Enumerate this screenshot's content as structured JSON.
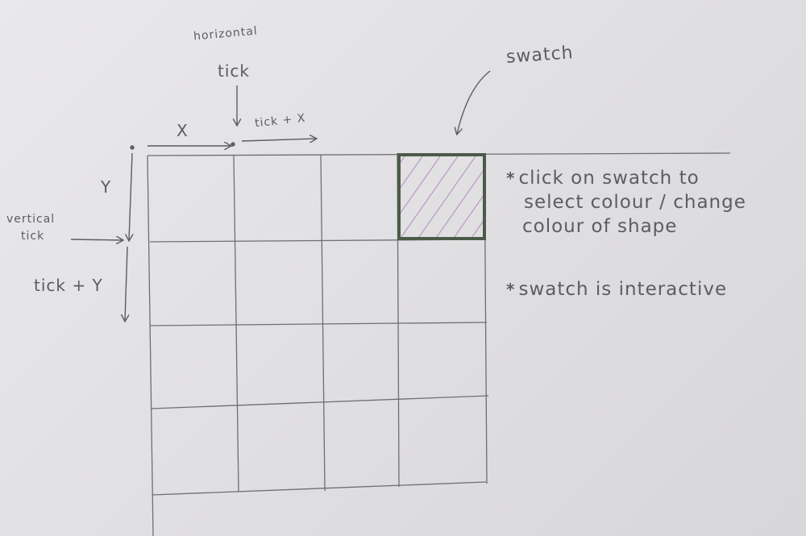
{
  "labels": {
    "horizontal_tick_line1": "horizontal",
    "horizontal_tick_line2": "tick",
    "x": "X",
    "tick_plus_x": "tick + X",
    "y": "Y",
    "vertical_tick_line1": "vertical",
    "vertical_tick_line2": "tick",
    "tick_plus_y": "tick + Y",
    "swatch": "swatch"
  },
  "notes": {
    "asterisk": "*",
    "note1_line1": "click on swatch to",
    "note1_line2": "select colour / change",
    "note1_line3": "colour of shape",
    "note2": "swatch is interactive"
  },
  "grid": {
    "columns": 4,
    "rows": 4,
    "swatch_cell": [
      3,
      0
    ]
  },
  "colors": {
    "pencil": "#6f6e72",
    "swatch_border": "#4c5a49",
    "swatch_hatch": "#b18ac4",
    "paper": "#e3e2e4"
  }
}
